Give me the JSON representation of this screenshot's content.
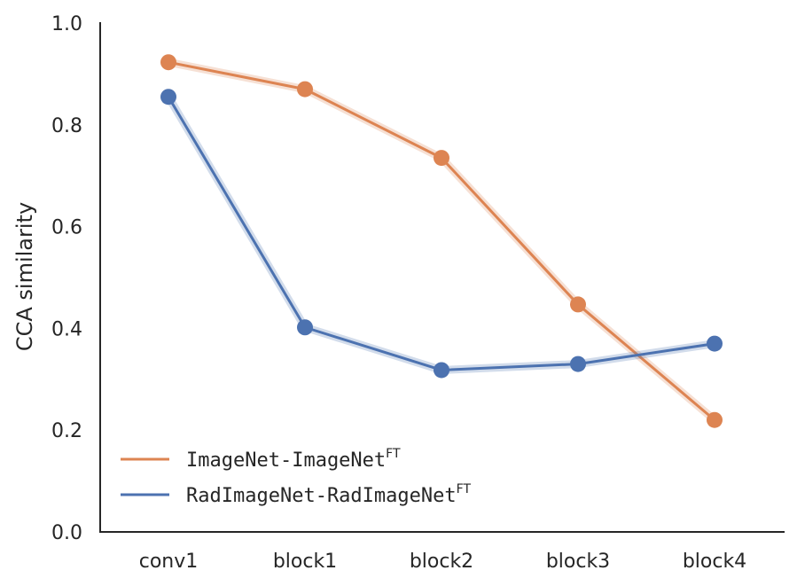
{
  "chart_data": {
    "type": "line",
    "categories": [
      "conv1",
      "block1",
      "block2",
      "block3",
      "block4"
    ],
    "ylabel": "CCA similarity",
    "xlabel": "",
    "ylim": [
      0.0,
      1.0
    ],
    "yticks": [
      0.0,
      0.2,
      0.4,
      0.6,
      0.8,
      1.0
    ],
    "ytick_labels": [
      "0.0",
      "0.2",
      "0.4",
      "0.6",
      "0.8",
      "1.0"
    ],
    "grid": false,
    "legend_position": "bottom-left",
    "series": [
      {
        "name": "ImageNet-ImageNet",
        "name_superscript": "FT",
        "color": "#dd8452",
        "values": [
          0.923,
          0.87,
          0.735,
          0.447,
          0.22
        ]
      },
      {
        "name": "RadImageNet-RadImageNet",
        "name_superscript": "FT",
        "color": "#4c72b0",
        "values": [
          0.855,
          0.402,
          0.318,
          0.33,
          0.37
        ]
      }
    ]
  }
}
